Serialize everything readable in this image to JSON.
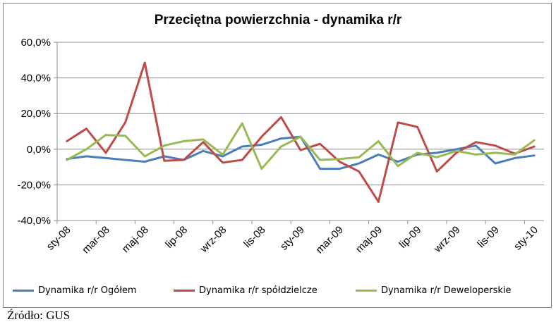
{
  "chart_data": {
    "type": "line",
    "title": "Przeciętna powierzchnia - dynamika r/r",
    "x": [
      "sty-08",
      "lut-08",
      "mar-08",
      "kwi-08",
      "maj-08",
      "cze-08",
      "lip-08",
      "sie-08",
      "wrz-08",
      "paź-08",
      "lis-08",
      "gru-08",
      "sty-09",
      "lut-09",
      "mar-09",
      "kwi-09",
      "maj-09",
      "cze-09",
      "lip-09",
      "sie-09",
      "wrz-09",
      "paź-09",
      "lis-09",
      "gru-09",
      "sty-10"
    ],
    "x_tick_labels": [
      "sty-08",
      "mar-08",
      "maj-08",
      "lip-08",
      "wrz-08",
      "lis-08",
      "sty-09",
      "mar-09",
      "maj-09",
      "lip-09",
      "wrz-09",
      "lis-09",
      "sty-10"
    ],
    "ylim": [
      -40,
      60
    ],
    "y_ticks": [
      "-40,0%",
      "-20,0%",
      "0,0%",
      "20,0%",
      "40,0%",
      "60,0%"
    ],
    "grid": true,
    "legend": "bottom",
    "series": [
      {
        "name": "Dynamika r/r Ogółem",
        "color": "#4a7ebb",
        "values": [
          -5.5,
          -4,
          -5,
          -6,
          -7,
          -4,
          -6,
          -1,
          -4,
          1.5,
          2.5,
          6,
          7,
          -11,
          -11,
          -8,
          -3,
          -7,
          -3,
          -2,
          0,
          2,
          -8,
          -5,
          -3.5
        ]
      },
      {
        "name": "Dynamika r/r spółdzielcze",
        "color": "#be4b48",
        "values": [
          4.5,
          11.5,
          -2,
          15,
          48.5,
          -6.5,
          -6,
          4,
          -7.5,
          -6,
          7,
          18,
          -0.5,
          3,
          -7,
          -12.5,
          -29.5,
          15,
          12.5,
          -12.5,
          -2,
          4,
          2,
          -2.5,
          1.5
        ]
      },
      {
        "name": "Dynamika r/r Deweloperskie",
        "color": "#98b954",
        "values": [
          -6,
          0,
          8,
          7.5,
          -4,
          2,
          4.5,
          5.5,
          -3,
          14.5,
          -11,
          1.5,
          7,
          -6,
          -5.5,
          -4.5,
          4.5,
          -9.5,
          -2,
          -4.5,
          -1,
          -3,
          -2,
          -3,
          5
        ]
      }
    ]
  },
  "source": "Źródło: GUS"
}
